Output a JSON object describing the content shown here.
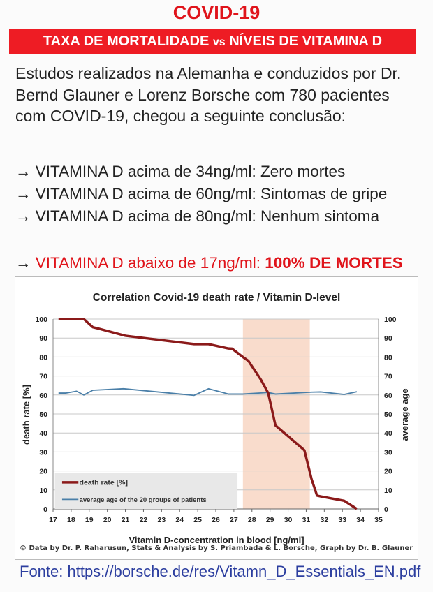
{
  "header": {
    "title": "COVID-19",
    "banner_part1": "TAXA DE MORTALIDADE ",
    "banner_vs": "vs",
    "banner_part2": " NÍVEIS DE VITAMINA D"
  },
  "intro": "Estudos realizados na Alemanha e conduzidos por Dr. Bernd Glauner e Lorenz Borsche com 780 pacientes com COVID-19, chegou a seguinte conclusão:",
  "bullets": [
    {
      "arrow": "→",
      "text": "VITAMINA D acima de 34ng/ml: Zero mortes"
    },
    {
      "arrow": "→",
      "text": "VITAMINA D acima de 60ng/ml: Sintomas de gripe"
    },
    {
      "arrow": "→",
      "text": "VITAMINA D acima de 80ng/ml: Nenhum sintoma"
    }
  ],
  "warning": {
    "arrow": "→",
    "text": "VITAMINA D abaixo de 17ng/ml: ",
    "strong": "100% DE MORTES"
  },
  "credit": "© Data by Dr. P. Raharusun, Stats & Analysis by S. Priambada & L. Borsche, Graph by Dr. B. Glauner",
  "source": "Fonte: https://borsche.de/res/Vitamn_D_Essentials_EN.pdf",
  "colors": {
    "red": "#e0141b",
    "death": "#8b1a1a",
    "age": "#4a7fa8",
    "band": "#f9dccc",
    "link": "#2c3e9f"
  },
  "chart_data": {
    "type": "line",
    "title": "Correlation Covid-19 death rate / Vitamin D-level",
    "xlabel": "Vitamin D-concentration  in blood [ng/ml]",
    "ylabel": "death rate [%]",
    "y2label": "average age",
    "xlim": [
      17,
      35
    ],
    "ylim": [
      0,
      100
    ],
    "y2lim": [
      0,
      100
    ],
    "xticks": [
      17,
      18,
      19,
      20,
      21,
      22,
      23,
      24,
      25,
      26,
      27,
      28,
      29,
      30,
      31,
      32,
      33,
      34,
      35
    ],
    "yticks": [
      0,
      10,
      20,
      30,
      40,
      50,
      60,
      70,
      80,
      90,
      100
    ],
    "grid": true,
    "highlight_band": [
      27.5,
      31.2
    ],
    "legend_position": "bottom-left",
    "series": [
      {
        "name": "death rate [%]",
        "x": [
          17.3,
          18.7,
          19.2,
          19.5,
          21.0,
          24.8,
          25.6,
          26.7,
          26.9,
          27.5,
          27.8,
          28.5,
          28.9,
          29.3,
          30.9,
          31.3,
          31.6,
          31.8,
          33.1,
          33.8
        ],
        "y": [
          100,
          100,
          95.7,
          95,
          91.2,
          86.8,
          86.8,
          84.5,
          84.4,
          80,
          78,
          68,
          61,
          44,
          30.9,
          15.6,
          7,
          6.6,
          4.3,
          0
        ]
      },
      {
        "name": "average age of the 20 groups of patients",
        "x": [
          17.3,
          17.7,
          18.3,
          18.7,
          19.2,
          20.9,
          24.8,
          25.6,
          26.7,
          27.5,
          28.9,
          29.3,
          31.3,
          31.8,
          33.1,
          33.8
        ],
        "y": [
          61,
          61,
          62,
          60,
          62.5,
          63.3,
          59.8,
          63.3,
          60.5,
          60.5,
          61.3,
          60.5,
          61.5,
          61.6,
          60.3,
          61.7
        ]
      }
    ]
  }
}
